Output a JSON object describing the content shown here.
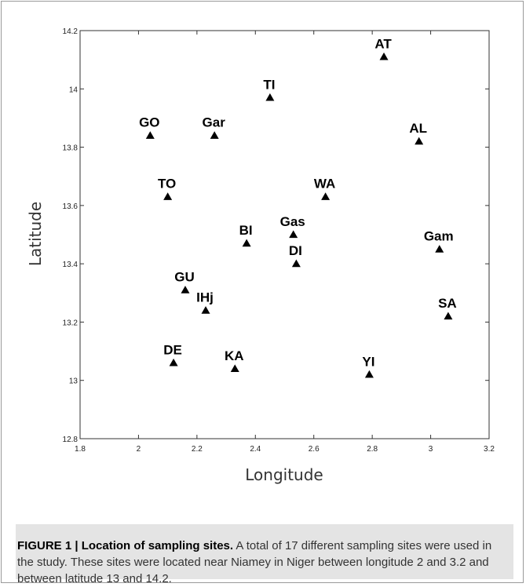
{
  "chart_data": {
    "type": "scatter",
    "xlabel": "Longitude",
    "ylabel": "Latitude",
    "xlim": [
      1.8,
      3.2
    ],
    "ylim": [
      12.8,
      14.2
    ],
    "xticks": [
      "1.8",
      "2",
      "2.2",
      "2.4",
      "2.6",
      "2.8",
      "3",
      "3.2"
    ],
    "yticks": [
      "12.8",
      "13",
      "13.2",
      "13.4",
      "13.6",
      "13.8",
      "14",
      "14.2"
    ],
    "marker": "triangle",
    "grid": false,
    "points": [
      {
        "label": "AT",
        "x": 2.84,
        "y": 14.11
      },
      {
        "label": "TI",
        "x": 2.45,
        "y": 13.97
      },
      {
        "label": "GO",
        "x": 2.04,
        "y": 13.84
      },
      {
        "label": "Gar",
        "x": 2.26,
        "y": 13.84
      },
      {
        "label": "AL",
        "x": 2.96,
        "y": 13.82
      },
      {
        "label": "TO",
        "x": 2.1,
        "y": 13.63
      },
      {
        "label": "WA",
        "x": 2.64,
        "y": 13.63
      },
      {
        "label": "Gas",
        "x": 2.53,
        "y": 13.5
      },
      {
        "label": "BI",
        "x": 2.37,
        "y": 13.47
      },
      {
        "label": "Gam",
        "x": 3.03,
        "y": 13.45
      },
      {
        "label": "DI",
        "x": 2.54,
        "y": 13.4
      },
      {
        "label": "GU",
        "x": 2.16,
        "y": 13.31
      },
      {
        "label": "IHj",
        "x": 2.23,
        "y": 13.24
      },
      {
        "label": "SA",
        "x": 3.06,
        "y": 13.22
      },
      {
        "label": "DE",
        "x": 2.12,
        "y": 13.06
      },
      {
        "label": "KA",
        "x": 2.33,
        "y": 13.04
      },
      {
        "label": "YI",
        "x": 2.79,
        "y": 13.02
      }
    ]
  },
  "caption": {
    "heading": "FIGURE 1 | Location of sampling sites.",
    "body": " A total of 17 different sampling sites were used in the study. These sites were located near Niamey in Niger between longitude 2 and 3.2 and between latitude 13 and 14.2."
  }
}
